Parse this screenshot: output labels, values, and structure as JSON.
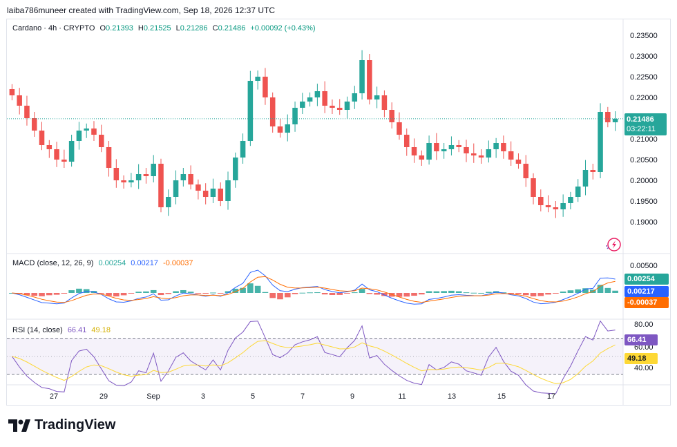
{
  "header": {
    "credit": "laiba786muneer created with TradingView.com, Sep 18, 2026 12:37 UTC"
  },
  "legend": {
    "symbol": "Cardano · 4h · CRYPTO",
    "o_label": "O",
    "o": "0.21393",
    "h_label": "H",
    "h": "0.21525",
    "l_label": "L",
    "l": "0.21286",
    "c_label": "C",
    "c": "0.21486",
    "change": "+0.00092 (+0.43%)"
  },
  "price_tag": {
    "value": "0.21486",
    "countdown": "03:22:11"
  },
  "macd": {
    "title": "MACD (close, 12, 26, 9)",
    "hist_value": "0.00254",
    "macd_value": "0.00217",
    "signal_value": "-0.00037",
    "axis_top": "0.00500"
  },
  "rsi": {
    "title": "RSI (14, close)",
    "rsi_value": "66.41",
    "ma_value": "49.18",
    "axis": [
      "80.00",
      "60.00",
      "40.00"
    ]
  },
  "footer": {
    "brand": "TradingView"
  },
  "colors": {
    "up": "#26a69a",
    "down": "#ef5350",
    "macd": "#2962ff",
    "signal": "#ff6d00",
    "rsi": "#7e57c2",
    "rsi_ma": "#fdd835"
  },
  "chart_data": [
    {
      "type": "candlestick",
      "title": "Cardano · 4h · CRYPTO",
      "x_ticks": [
        "27",
        "29",
        "Sep",
        "3",
        "5",
        "7",
        "9",
        "11",
        "13",
        "15",
        "17"
      ],
      "y_ticks": [
        "0.23500",
        "0.23000",
        "0.22500",
        "0.22000",
        "0.21000",
        "0.20500",
        "0.20000",
        "0.19500",
        "0.19000"
      ],
      "ylim": [
        0.1875,
        0.2365
      ],
      "close_series": [
        0.2205,
        0.218,
        0.215,
        0.212,
        0.2085,
        0.2075,
        0.205,
        0.2045,
        0.2095,
        0.212,
        0.2125,
        0.211,
        0.208,
        0.203,
        0.2,
        0.1995,
        0.2,
        0.2015,
        0.201,
        0.204,
        0.1935,
        0.196,
        0.2,
        0.2015,
        0.199,
        0.1975,
        0.196,
        0.198,
        0.195,
        0.2,
        0.2055,
        0.2095,
        0.224,
        0.225,
        0.22,
        0.213,
        0.2115,
        0.2135,
        0.2175,
        0.219,
        0.22,
        0.2215,
        0.218,
        0.2175,
        0.217,
        0.219,
        0.221,
        0.229,
        0.2195,
        0.2205,
        0.217,
        0.214,
        0.211,
        0.208,
        0.206,
        0.205,
        0.209,
        0.207,
        0.2075,
        0.2085,
        0.208,
        0.2065,
        0.206,
        0.2055,
        0.2075,
        0.209,
        0.207,
        0.205,
        0.204,
        0.2005,
        0.196,
        0.194,
        0.1935,
        0.193,
        0.1945,
        0.196,
        0.1985,
        0.2025,
        0.202,
        0.2165,
        0.214,
        0.21486
      ],
      "last_price": 0.21486
    },
    {
      "type": "bar",
      "title": "MACD (close, 12, 26, 9)",
      "series": [
        {
          "name": "Histogram",
          "last": 0.00254
        },
        {
          "name": "MACD",
          "last": 0.00217
        },
        {
          "name": "Signal",
          "last": -0.00037
        }
      ],
      "y_ticks": [
        "0.00500"
      ]
    },
    {
      "type": "line",
      "title": "RSI (14, close)",
      "series": [
        {
          "name": "RSI",
          "last": 66.41
        },
        {
          "name": "RSI MA",
          "last": 49.18
        }
      ],
      "y_ticks": [
        "80.00",
        "60.00",
        "40.00"
      ]
    }
  ]
}
